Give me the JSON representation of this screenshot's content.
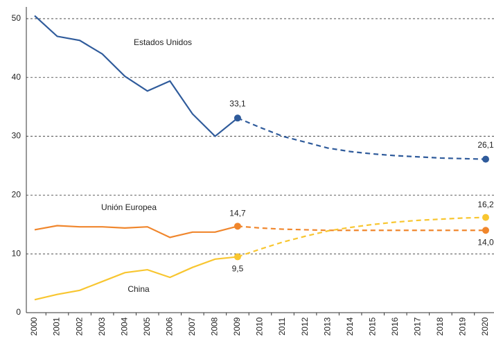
{
  "chart_data": {
    "type": "line",
    "categories": [
      "2000",
      "2001",
      "2002",
      "2003",
      "2004",
      "2005",
      "2006",
      "2007",
      "2008",
      "2009",
      "2010",
      "2011",
      "2012",
      "2013",
      "2014",
      "2015",
      "2016",
      "2017",
      "2018",
      "2019",
      "2020"
    ],
    "forecast_from": "2009",
    "ylim": [
      0,
      52
    ],
    "yticks": [
      0,
      10,
      20,
      30,
      40,
      50
    ],
    "grid": true,
    "series": [
      {
        "name": "Estados Unidos",
        "color": "#2f5b9b",
        "values": [
          50.5,
          47,
          46.3,
          44,
          40.2,
          37.7,
          39.4,
          33.8,
          30,
          33.1,
          31.5,
          30,
          29,
          28,
          27.4,
          27,
          26.7,
          26.5,
          26.3,
          26.2,
          26.1
        ],
        "value_labels": [
          null,
          null,
          null,
          null,
          null,
          null,
          null,
          null,
          null,
          "33,1",
          null,
          null,
          null,
          null,
          null,
          null,
          null,
          null,
          null,
          null,
          "26,1"
        ]
      },
      {
        "name": "Unión Europea",
        "color": "#f0862c",
        "values": [
          14.1,
          14.8,
          14.6,
          14.6,
          14.4,
          14.6,
          12.8,
          13.7,
          13.7,
          14.7,
          14.4,
          14.2,
          14.1,
          14,
          14,
          14,
          14,
          14,
          14,
          14,
          14
        ],
        "value_labels": [
          null,
          null,
          null,
          null,
          null,
          null,
          null,
          null,
          null,
          "14,7",
          null,
          null,
          null,
          null,
          null,
          null,
          null,
          null,
          null,
          null,
          "14,0"
        ]
      },
      {
        "name": "China",
        "color": "#f8c630",
        "values": [
          2.2,
          3.1,
          3.8,
          5.3,
          6.8,
          7.3,
          6,
          7.7,
          9.1,
          9.5,
          10.8,
          12,
          13,
          13.9,
          14.5,
          15,
          15.4,
          15.7,
          15.9,
          16.1,
          16.2
        ],
        "value_labels": [
          null,
          null,
          null,
          null,
          null,
          null,
          null,
          null,
          null,
          "9,5",
          null,
          null,
          null,
          null,
          null,
          null,
          null,
          null,
          null,
          null,
          "16,2"
        ]
      }
    ]
  }
}
